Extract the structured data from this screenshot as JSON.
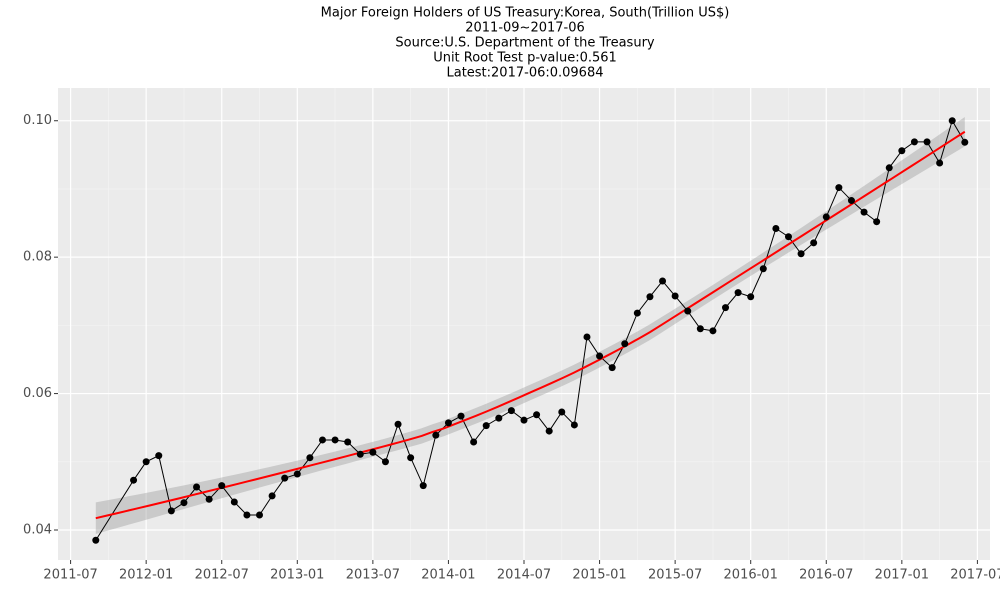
{
  "chart_data": {
    "type": "line",
    "title": "Major Foreign Holders of US Treasury:Korea, South(Trillion US$)",
    "subtitle": "2011-09~2017-06",
    "source": "Source:U.S. Department of the Treasury",
    "test": "Unit Root Test p-value:0.561",
    "latest": "Latest:2017-06:0.09684",
    "x": [
      "2011-09",
      "2011-12",
      "2012-01",
      "2012-02",
      "2012-03",
      "2012-04",
      "2012-05",
      "2012-06",
      "2012-07",
      "2012-08",
      "2012-09",
      "2012-10",
      "2012-11",
      "2012-12",
      "2013-01",
      "2013-02",
      "2013-03",
      "2013-04",
      "2013-05",
      "2013-06",
      "2013-07",
      "2013-08",
      "2013-09",
      "2013-10",
      "2013-11",
      "2013-12",
      "2014-01",
      "2014-02",
      "2014-03",
      "2014-04",
      "2014-05",
      "2014-06",
      "2014-07",
      "2014-08",
      "2014-09",
      "2014-10",
      "2014-11",
      "2014-12",
      "2015-01",
      "2015-02",
      "2015-03",
      "2015-04",
      "2015-05",
      "2015-06",
      "2015-07",
      "2015-08",
      "2015-09",
      "2015-10",
      "2015-11",
      "2015-12",
      "2016-01",
      "2016-02",
      "2016-03",
      "2016-04",
      "2016-05",
      "2016-06",
      "2016-07",
      "2016-08",
      "2016-09",
      "2016-10",
      "2016-11",
      "2016-12",
      "2017-01",
      "2017-02",
      "2017-03",
      "2017-04",
      "2017-05",
      "2017-06"
    ],
    "series": [
      {
        "color": "#000000",
        "values": [
          0.0385,
          0.0473,
          0.05,
          0.0509,
          0.0428,
          0.044,
          0.0463,
          0.0445,
          0.0465,
          0.0441,
          0.0422,
          0.0422,
          0.045,
          0.0476,
          0.0482,
          0.0506,
          0.0532,
          0.0532,
          0.0529,
          0.0511,
          0.0514,
          0.05,
          0.0555,
          0.0506,
          0.0465,
          0.0539,
          0.0557,
          0.0567,
          0.0529,
          0.0553,
          0.0564,
          0.0575,
          0.0561,
          0.0569,
          0.0545,
          0.0573,
          0.0554,
          0.0683,
          0.0655,
          0.0638,
          0.0673,
          0.0718,
          0.0742,
          0.0765,
          0.0743,
          0.0721,
          0.0695,
          0.0692,
          0.0726,
          0.0748,
          0.0742,
          0.0783,
          0.0842,
          0.083,
          0.0805,
          0.0821,
          0.0859,
          0.0902,
          0.0883,
          0.0866,
          0.0852,
          0.0931,
          0.0956,
          0.0969,
          0.0969,
          0.0938,
          0.1,
          0.09684
        ]
      }
    ],
    "smooth_color": "#ff0000",
    "xlim": [
      "2011-06",
      "2017-08"
    ],
    "xticks": [
      "2011-07",
      "2012-01",
      "2012-07",
      "2013-01",
      "2013-07",
      "2014-01",
      "2014-07",
      "2015-01",
      "2015-07",
      "2016-01",
      "2016-07",
      "2017-01",
      "2017-07"
    ],
    "ylim": [
      0.0356,
      0.1048
    ],
    "yticks": [
      0.04,
      0.06,
      0.08,
      {
        "value": 0.1,
        "label": "0.10"
      }
    ],
    "grid": true
  }
}
